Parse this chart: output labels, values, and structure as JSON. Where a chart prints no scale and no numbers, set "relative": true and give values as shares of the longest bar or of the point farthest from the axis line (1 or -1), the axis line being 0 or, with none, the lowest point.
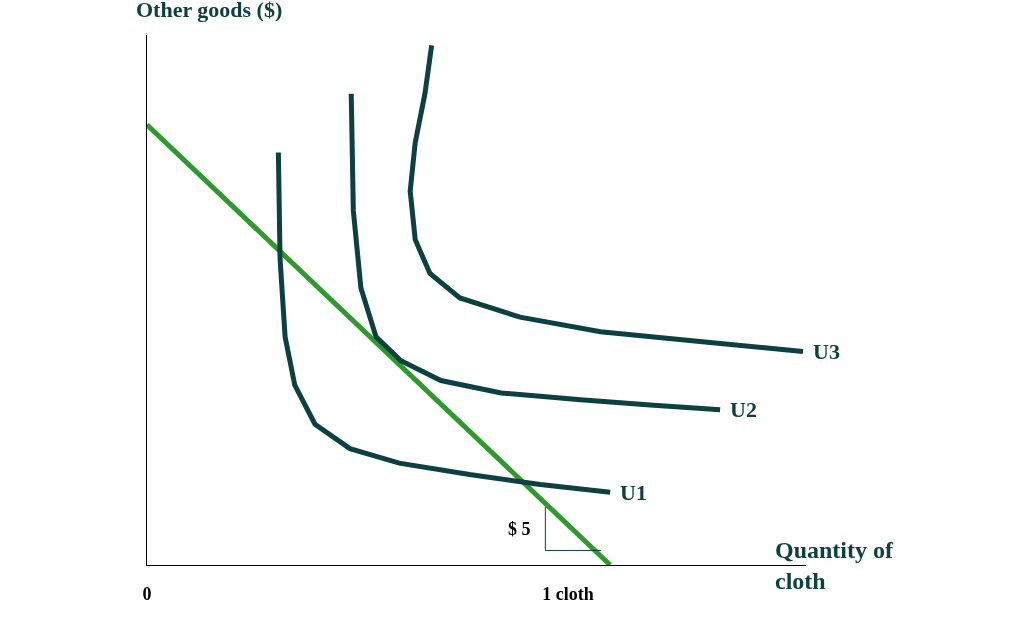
{
  "chart_data": {
    "type": "line",
    "relative": true,
    "ylabel": "Other goods ($)",
    "xlabel": "Quantity of cloth",
    "xlim": [
      0,
      1.565
    ],
    "xticks": [
      {
        "value": 0,
        "label": "0"
      },
      {
        "value": 1,
        "label": "1 cloth"
      }
    ],
    "tick_labels": "x",
    "legend": false,
    "series": [
      {
        "color": "#2e9a2e",
        "x": [
          0,
          1.1
        ],
        "values": [
          0.847,
          0
        ]
      },
      {
        "name": "U1",
        "color": "#0d4040",
        "x": [
          0.312,
          0.316,
          0.328,
          0.351,
          0.399,
          0.482,
          0.599,
          0.766,
          0.934,
          1.1
        ],
        "values": [
          0.794,
          0.589,
          0.439,
          0.346,
          0.271,
          0.224,
          0.196,
          0.174,
          0.155,
          0.14
        ]
      },
      {
        "name": "U2",
        "color": "#0d4040",
        "x": [
          0.485,
          0.49,
          0.508,
          0.544,
          0.603,
          0.698,
          0.841,
          1.03,
          1.195,
          1.361
        ],
        "values": [
          0.907,
          0.682,
          0.533,
          0.439,
          0.393,
          0.355,
          0.331,
          0.318,
          0.308,
          0.299
        ]
      },
      {
        "name": "U3",
        "color": "#0d4040",
        "x": [
          0.676,
          0.66,
          0.637,
          0.625,
          0.637,
          0.672,
          0.743,
          0.886,
          1.077,
          1.313,
          1.558
        ],
        "values": [
          1.0,
          0.907,
          0.813,
          0.72,
          0.626,
          0.561,
          0.514,
          0.477,
          0.449,
          0.43,
          0.411
        ]
      },
      {
        "color": "#0d4040",
        "x": [
          0.946,
          0.946,
          1.078
        ],
        "values": [
          0.112,
          0.028,
          0.028
        ]
      }
    ],
    "annotations": [
      "$ 5"
    ]
  }
}
